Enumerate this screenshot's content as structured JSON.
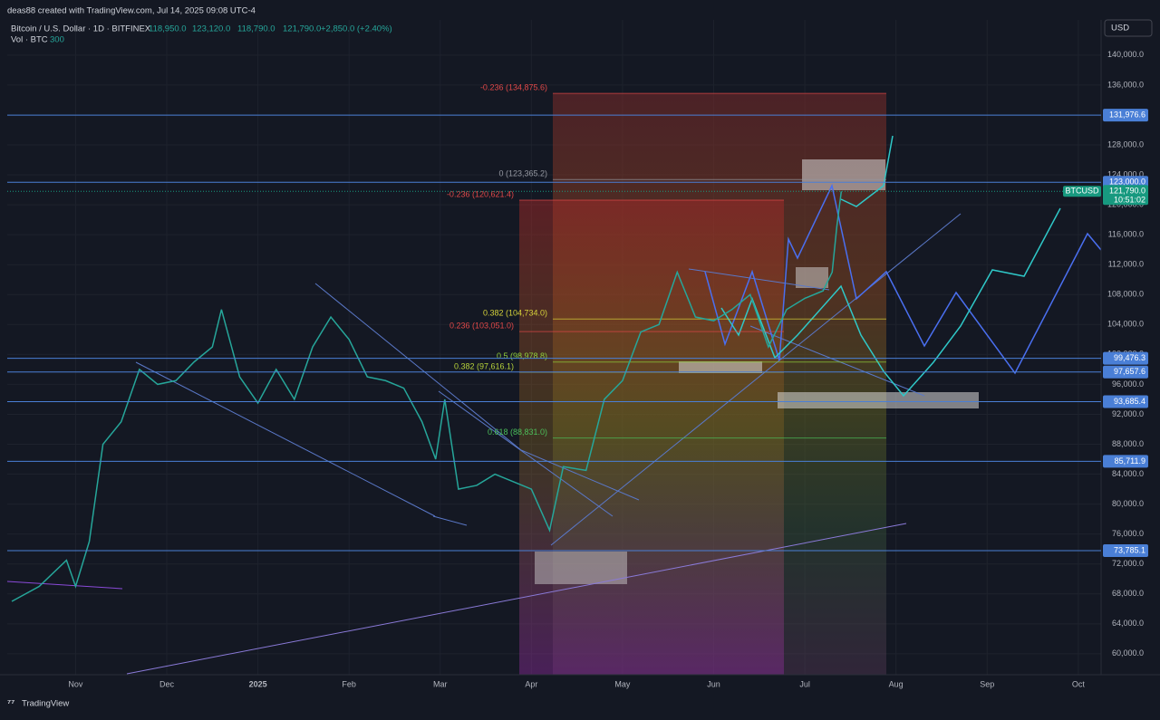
{
  "header": {
    "credit": "deas88 created with TradingView.com, Jul 14, 2025 09:08 UTC-4",
    "symbol": "Bitcoin / U.S. Dollar · 1D · BITFINEX",
    "open": "118,950.0",
    "high": "123,120.0",
    "low": "118,790.0",
    "close": "121,790.0",
    "change": "+2,850.0 (+2.40%)",
    "volume_label": "Vol · BTC",
    "volume": "300",
    "currency": "USD",
    "brand": "TradingView"
  },
  "chart_data": {
    "type": "line",
    "series": [
      {
        "name": "BTCUSD",
        "color": "#26a69a",
        "x": [
          -0.7,
          -0.4,
          -0.1,
          0.0,
          0.15,
          0.3,
          0.5,
          0.7,
          0.9,
          1.1,
          1.3,
          1.5,
          1.6,
          1.8,
          2.0,
          2.2,
          2.4,
          2.6,
          2.8,
          3.0,
          3.2,
          3.4,
          3.6,
          3.8,
          3.95,
          4.05,
          4.2,
          4.4,
          4.6,
          4.8,
          5.0,
          5.2,
          5.35,
          5.6,
          5.8,
          6.0,
          6.2,
          6.4,
          6.6,
          6.8,
          7.0,
          7.2,
          7.4,
          7.6,
          7.8,
          8.0,
          8.2,
          8.3,
          8.35,
          8.4
        ],
        "values": [
          67000,
          69000,
          72500,
          69000,
          75000,
          88000,
          91000,
          98000,
          96000,
          96500,
          99000,
          101000,
          106000,
          97000,
          93500,
          98000,
          94000,
          101000,
          105000,
          102000,
          97000,
          96500,
          95500,
          91000,
          86000,
          94000,
          82000,
          82500,
          84000,
          83000,
          82000,
          76500,
          85000,
          84500,
          94000,
          96500,
          103000,
          104000,
          111000,
          105000,
          104500,
          106000,
          108000,
          101000,
          106000,
          107500,
          108500,
          111000,
          117000,
          121790
        ]
      }
    ],
    "xlim": [
      -0.75,
      11.25
    ],
    "xticks": [
      {
        "value": 0,
        "label": "Nov"
      },
      {
        "value": 1,
        "label": "Dec"
      },
      {
        "value": 2,
        "label": "2025"
      },
      {
        "value": 3,
        "label": "Feb"
      },
      {
        "value": 4,
        "label": "Mar"
      },
      {
        "value": 5,
        "label": "Apr"
      },
      {
        "value": 6,
        "label": "May"
      },
      {
        "value": 7,
        "label": "Jun"
      },
      {
        "value": 8,
        "label": "Jul"
      },
      {
        "value": 9,
        "label": "Aug"
      },
      {
        "value": 10,
        "label": "Sep"
      },
      {
        "value": 11,
        "label": "Oct"
      }
    ],
    "ylim": [
      57200,
      144700
    ],
    "yticks": [
      {
        "value": 60000,
        "label": "60,000.0"
      },
      {
        "value": 64000,
        "label": "64,000.0"
      },
      {
        "value": 68000,
        "label": "68,000.0"
      },
      {
        "value": 72000,
        "label": "72,000.0"
      },
      {
        "value": 76000,
        "label": "76,000.0"
      },
      {
        "value": 80000,
        "label": "80,000.0"
      },
      {
        "value": 84000,
        "label": "84,000.0"
      },
      {
        "value": 88000,
        "label": "88,000.0"
      },
      {
        "value": 92000,
        "label": "92,000.0"
      },
      {
        "value": 96000,
        "label": "96,000.0"
      },
      {
        "value": 100000,
        "label": "100,000.0"
      },
      {
        "value": 104000,
        "label": "104,000.0"
      },
      {
        "value": 108000,
        "label": "108,000.0"
      },
      {
        "value": 112000,
        "label": "112,000.0"
      },
      {
        "value": 116000,
        "label": "116,000.0"
      },
      {
        "value": 120000,
        "label": "120,000.0"
      },
      {
        "value": 124000,
        "label": "124,000.0"
      },
      {
        "value": 128000,
        "label": "128,000.0"
      },
      {
        "value": 132000,
        "label": "132,000.0"
      },
      {
        "value": 136000,
        "label": "136,000.0"
      },
      {
        "value": 140000,
        "label": "140,000.0"
      }
    ],
    "levels": [
      {
        "value": 131976.6,
        "label": "131,976.6"
      },
      {
        "value": 123000.0,
        "label": "123,000.0"
      },
      {
        "value": 99476.3,
        "label": "99,476.3"
      },
      {
        "value": 97657.6,
        "label": "97,657.6"
      },
      {
        "value": 93685.4,
        "label": "93,685.4"
      },
      {
        "value": 85711.9,
        "label": "85,711.9"
      },
      {
        "value": 73785.1,
        "label": "73,785.1"
      }
    ],
    "level_color": "#4a7fd6",
    "last": {
      "symbol": "BTCUSD",
      "value": 121790.0,
      "label": "121,790.0",
      "countdown": "10:51:02",
      "color": "#17997f"
    },
    "fib_a": [
      {
        "value": 134875.6,
        "label": "-0.236 (134,875.6)",
        "color": "#e04848"
      },
      {
        "value": 123365.2,
        "label": "0 (123,365.2)",
        "color": "#9598a1"
      },
      {
        "value": 104734.0,
        "label": "0.382 (104,734.0)",
        "color": "#d6d23a"
      },
      {
        "value": 98978.8,
        "label": "0.5 (98,978.8)",
        "color": "#8fcf3a"
      },
      {
        "value": 88831.0,
        "label": "0.618 (88,831.0)",
        "color": "#4cbf5a"
      }
    ],
    "fib_b": [
      {
        "value": 120621.4,
        "label": "-0.236 (120,621.4)",
        "color": "#e04848"
      },
      {
        "value": 103051.0,
        "label": "0.236 (103,051.0)",
        "color": "#e04848"
      },
      {
        "value": 97616.1,
        "label": "0.382 (97,616.1)",
        "color": "#b7d23a"
      }
    ]
  }
}
